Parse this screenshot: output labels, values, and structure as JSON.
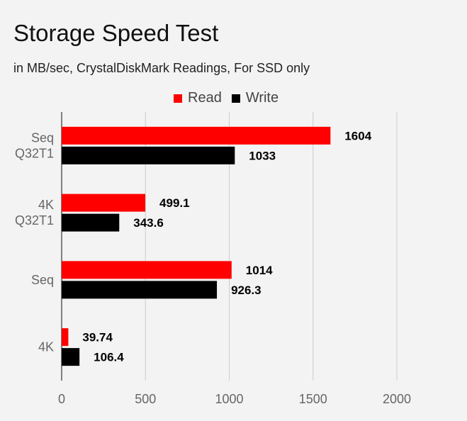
{
  "chart_data": {
    "type": "bar",
    "orientation": "horizontal",
    "title": "Storage Speed Test",
    "subtitle": "in MB/sec, CrystalDiskMark Readings, For SSD only",
    "categories": [
      [
        "Seq",
        "Q32T1"
      ],
      [
        "4K",
        "Q32T1"
      ],
      [
        "Seq"
      ],
      [
        "4K"
      ]
    ],
    "series": [
      {
        "name": "Read",
        "color": "#ff0000",
        "values": [
          1604,
          499.1,
          1014,
          39.74
        ],
        "labels": [
          "1604",
          "499.1",
          "1014",
          "39.74"
        ]
      },
      {
        "name": "Write",
        "color": "#000000",
        "values": [
          1033,
          343.6,
          926.3,
          106.4
        ],
        "labels": [
          "1033",
          "343.6",
          "926.3",
          "106.4"
        ]
      }
    ],
    "xlim": [
      0,
      2000
    ],
    "xticks": [
      "0",
      "500",
      "1000",
      "1500",
      "2000"
    ],
    "grid": true,
    "legend": "top-center"
  }
}
